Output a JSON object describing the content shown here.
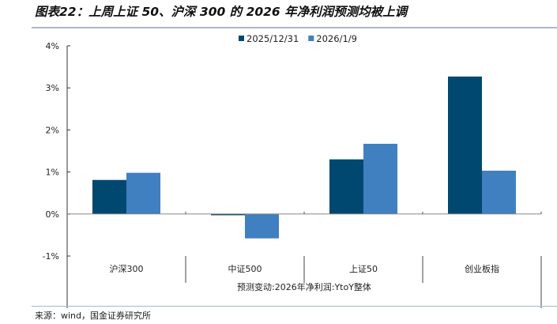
{
  "title": "图表22：上周上证 50、沪深 300 的 2026 年净利润预测均被上调",
  "source": "来源：wind，国金证券研究所",
  "chart_data": {
    "type": "bar",
    "categories": [
      "沪深300",
      "中证500",
      "上证50",
      "创业板指"
    ],
    "xlabel": "预测变动:2026年净利润:YtoY整体",
    "ylabel": "",
    "ylim": [
      -1,
      4
    ],
    "yticks": [
      -1,
      0,
      1,
      2,
      3,
      4
    ],
    "ytick_labels": [
      "-1%",
      "0%",
      "1%",
      "2%",
      "3%",
      "4%"
    ],
    "legend_position": "top",
    "grid": false,
    "series": [
      {
        "name": "2025/12/31",
        "color": "#004870",
        "values": [
          0.81,
          -0.03,
          1.3,
          3.27
        ]
      },
      {
        "name": "2026/1/9",
        "color": "#4080c0",
        "values": [
          0.98,
          -0.58,
          1.67,
          1.03
        ]
      }
    ]
  }
}
